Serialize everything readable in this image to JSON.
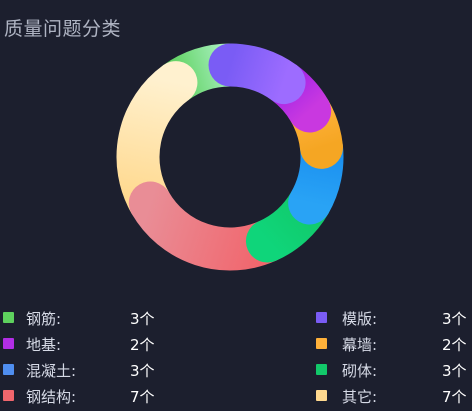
{
  "title": "质量问题分类",
  "chart_data": {
    "type": "pie",
    "title": "质量问题分类",
    "unit": "个",
    "donut": true,
    "series": [
      {
        "name": "模版",
        "value": 3,
        "colors": [
          "#7a5cf5",
          "#9d6cff"
        ]
      },
      {
        "name": "地基",
        "value": 2,
        "colors": [
          "#a226e6",
          "#c938e0"
        ]
      },
      {
        "name": "幕墙",
        "value": 2,
        "colors": [
          "#ffb13a",
          "#f5a623"
        ]
      },
      {
        "name": "混凝土",
        "value": 3,
        "colors": [
          "#1a8ff0",
          "#29a3f5"
        ]
      },
      {
        "name": "砌体",
        "value": 3,
        "colors": [
          "#12c96a",
          "#0fd57a"
        ]
      },
      {
        "name": "钢结构",
        "value": 7,
        "colors": [
          "#f1666d",
          "#e98d96"
        ]
      },
      {
        "name": "其它",
        "value": 7,
        "colors": [
          "#ffd98f",
          "#fff1cf"
        ]
      },
      {
        "name": "钢筋",
        "value": 3,
        "colors": [
          "#5ed15e",
          "#a8f0c0"
        ]
      }
    ]
  },
  "legend": {
    "left": [
      {
        "label": "钢筋:",
        "count": "3个",
        "color": "#5ed15e"
      },
      {
        "label": "地基:",
        "count": "2个",
        "color": "#b22ee6"
      },
      {
        "label": "混凝土:",
        "count": "3个",
        "color": "#4f8ef0"
      },
      {
        "label": "钢结构:",
        "count": "7个",
        "color": "#f1666d"
      }
    ],
    "right": [
      {
        "label": "模版:",
        "count": "3个",
        "color": "#7a5cf5"
      },
      {
        "label": "幕墙:",
        "count": "2个",
        "color": "#ffb13a"
      },
      {
        "label": "砌体:",
        "count": "3个",
        "color": "#12c96a"
      },
      {
        "label": "其它:",
        "count": "7个",
        "color": "#ffd98f"
      }
    ]
  }
}
